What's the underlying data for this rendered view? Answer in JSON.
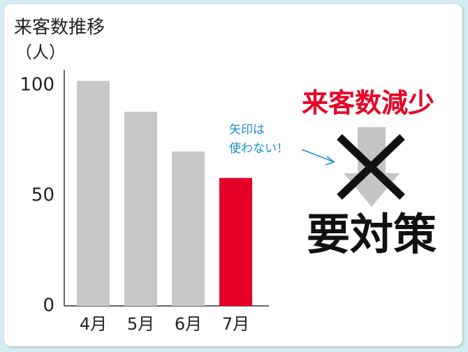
{
  "chart_data": {
    "type": "bar",
    "title": "来客数推移",
    "y_label": "（人）",
    "categories": [
      "4月",
      "5月",
      "6月",
      "7月"
    ],
    "values": [
      102,
      88,
      70,
      58
    ],
    "colors": [
      "#c8c8c8",
      "#c8c8c8",
      "#c8c8c8",
      "#e60026"
    ],
    "ylim": [
      0,
      107
    ],
    "yticks": [
      0,
      50,
      100
    ],
    "grid": false,
    "annotations": {
      "headline": "来客数減少",
      "conclusion": "要対策",
      "note": [
        "矢印は",
        "使わない！"
      ]
    }
  }
}
